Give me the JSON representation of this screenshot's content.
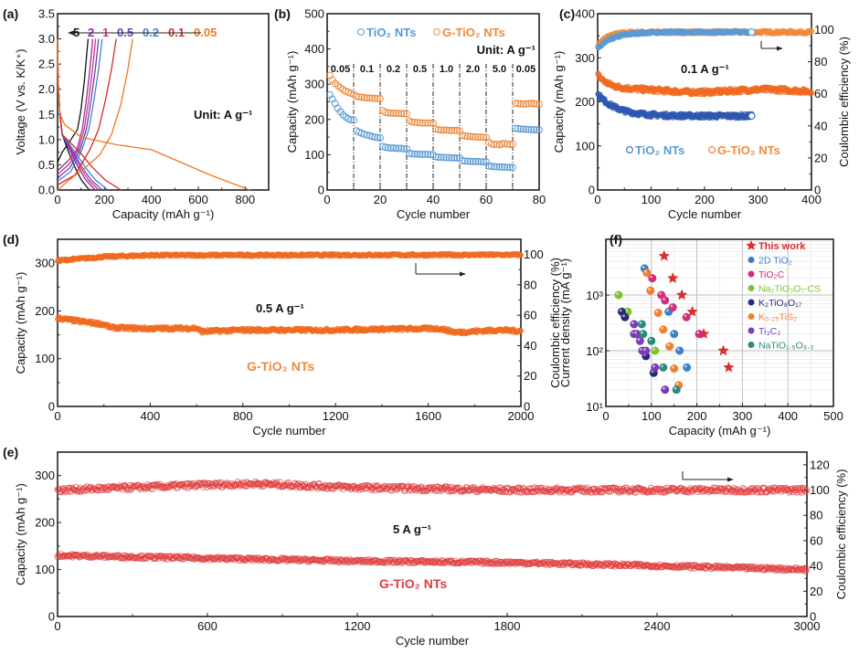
{
  "colors": {
    "orange": "#f08a3c",
    "orange_dark": "#f06a20",
    "blue": "#5b9bd5",
    "blue_dark": "#2f58b0",
    "red": "#e03c3c",
    "black": "#111111"
  },
  "chart_data": [
    {
      "id": "a",
      "panel_label": "(a)",
      "type": "line",
      "title": "",
      "xlabel": "Capacity (mAh g⁻¹)",
      "ylabel": "Voltage (V vs. K/K⁺)",
      "xlim": [
        0,
        900
      ],
      "ylim": [
        0,
        3.5
      ],
      "xticks": [
        0,
        200,
        400,
        600,
        800
      ],
      "yticks": [
        0.0,
        0.5,
        1.0,
        1.5,
        2.0,
        2.5,
        3.0,
        3.5
      ],
      "annotation": "Unit: A g⁻¹",
      "rate_labels": [
        "5",
        "2",
        "1",
        "0.5",
        "0.2",
        "0.1",
        "0.05"
      ],
      "rate_colors": [
        "#111111",
        "#8e2ca8",
        "#d6307a",
        "#6a3fb5",
        "#4a7fd0",
        "#d42a2a",
        "#f07820"
      ],
      "series": [
        {
          "name": "5",
          "discharge_capacity": 135,
          "charge_capacity": 130,
          "color": "#111111"
        },
        {
          "name": "2",
          "discharge_capacity": 160,
          "charge_capacity": 150,
          "color": "#8e2ca8"
        },
        {
          "name": "1",
          "discharge_capacity": 175,
          "charge_capacity": 162,
          "color": "#d6307a"
        },
        {
          "name": "0.5",
          "discharge_capacity": 190,
          "charge_capacity": 175,
          "color": "#6a3fb5"
        },
        {
          "name": "0.2",
          "discharge_capacity": 215,
          "charge_capacity": 190,
          "color": "#4a7fd0"
        },
        {
          "name": "0.1",
          "discharge_capacity": 270,
          "charge_capacity": 250,
          "color": "#d42a2a"
        },
        {
          "name": "0.05",
          "discharge_capacity": 820,
          "charge_capacity": 320,
          "color": "#f07820"
        }
      ]
    },
    {
      "id": "b",
      "panel_label": "(b)",
      "type": "scatter",
      "xlabel": "Cycle number",
      "ylabel": "Capacity (mAh g⁻¹)",
      "xlim": [
        0,
        80
      ],
      "ylim": [
        0,
        500
      ],
      "xticks": [
        0,
        20,
        40,
        60,
        80
      ],
      "yticks": [
        0,
        100,
        200,
        300,
        400,
        500
      ],
      "annotation": "Unit: A g⁻¹",
      "rate_segments": [
        "0.05",
        "0.1",
        "0.2",
        "0.5",
        "1.0",
        "2.0",
        "5.0",
        "0.05"
      ],
      "rate_boundaries": [
        10,
        20,
        30,
        40,
        50,
        60,
        70
      ],
      "series": [
        {
          "name": "TiO₂ NTs",
          "color": "#5b9bd5",
          "segment_values": [
            [
              270,
              258,
              245,
              232,
              222,
              213,
              207,
              202,
              199,
              198
            ],
            [
              168,
              164,
              161,
              158,
              156,
              154,
              152,
              150,
              149,
              148
            ],
            [
              124,
              121,
              120,
              119,
              119,
              118,
              118,
              118,
              117,
              117
            ],
            [
              104,
              103,
              102,
              102,
              101,
              101,
              101,
              101,
              100,
              100
            ],
            [
              94,
              93,
              93,
              92,
              92,
              92,
              91,
              91,
              91,
              91
            ],
            [
              83,
              82,
              82,
              81,
              81,
              81,
              81,
              80,
              80,
              80
            ],
            [
              68,
              67,
              66,
              66,
              65,
              65,
              65,
              64,
              64,
              64
            ],
            [
              175,
              174,
              173,
              173,
              172,
              172,
              171,
              171,
              171,
              170
            ]
          ]
        },
        {
          "name": "G-TiO₂ NTs",
          "color": "#f08a3c",
          "segment_values": [
            [
              325,
              312,
              302,
              296,
              290,
              285,
              280,
              277,
              274,
              272
            ],
            [
              266,
              264,
              263,
              262,
              261,
              261,
              260,
              260,
              259,
              259
            ],
            [
              225,
              220,
              219,
              218,
              218,
              218,
              217,
              217,
              217,
              216
            ],
            [
              196,
              193,
              192,
              191,
              191,
              190,
              190,
              190,
              190,
              189
            ],
            [
              173,
              171,
              170,
              170,
              170,
              169,
              169,
              169,
              169,
              168
            ],
            [
              155,
              153,
              152,
              152,
              151,
              151,
              150,
              150,
              150,
              149
            ],
            [
              135,
              131,
              129,
              130,
              128,
              131,
              132,
              130,
              129,
              130
            ],
            [
              246,
              245,
              245,
              244,
              244,
              245,
              246,
              245,
              244,
              243
            ]
          ]
        }
      ]
    },
    {
      "id": "c",
      "panel_label": "(c)",
      "type": "scatter",
      "xlabel": "Cycle number",
      "ylabel": "Capacity (mAh g⁻¹)",
      "y2label": "Coulombic efficiency (%)",
      "xlim": [
        0,
        400
      ],
      "ylim": [
        0,
        400
      ],
      "y2lim": [
        0,
        110
      ],
      "xticks": [
        0,
        100,
        200,
        300,
        400
      ],
      "yticks": [
        0,
        100,
        200,
        300,
        400
      ],
      "y2ticks": [
        0,
        20,
        40,
        60,
        80,
        100
      ],
      "annotation": "0.1 A g⁻¹",
      "series": [
        {
          "name": "TiO₂ NTs capacity",
          "color": "#2f58b0",
          "end_cycle": 288,
          "start": 218,
          "plateau": 168
        },
        {
          "name": "G-TiO₂ NTs capacity",
          "color": "#f06a20",
          "end_cycle": 400,
          "start": 262,
          "plateau": 225
        },
        {
          "name": "TiO₂ NTs CE",
          "color": "#5b9bd5",
          "end_cycle": 288,
          "start": 88,
          "plateau": 98.5,
          "axis": "y2"
        },
        {
          "name": "G-TiO₂ NTs CE",
          "color": "#f08a3c",
          "end_cycle": 400,
          "start": 90,
          "plateau": 98.5,
          "axis": "y2"
        }
      ],
      "legend": [
        "TiO₂ NTs",
        "G-TiO₂ NTs"
      ]
    },
    {
      "id": "d",
      "panel_label": "(d)",
      "type": "scatter",
      "xlabel": "Cycle number",
      "ylabel": "Capacity (mAh g⁻¹)",
      "y2label": "Coulombic efficiency (%)",
      "xlim": [
        0,
        2000
      ],
      "ylim": [
        0,
        350
      ],
      "y2lim": [
        0,
        110
      ],
      "xticks": [
        0,
        400,
        800,
        1200,
        1600,
        2000
      ],
      "yticks": [
        0,
        100,
        200,
        300
      ],
      "y2ticks": [
        0,
        20,
        40,
        60,
        80,
        100
      ],
      "annotation": "0.5 A g⁻¹",
      "series_label": "G-TiO₂ NTs",
      "series": [
        {
          "name": "capacity",
          "color": "#f06a20",
          "points": [
            [
              0,
              185
            ],
            [
              100,
              178
            ],
            [
              200,
              172
            ],
            [
              230,
              165
            ],
            [
              400,
              163
            ],
            [
              600,
              164
            ],
            [
              620,
              157
            ],
            [
              800,
              160
            ],
            [
              1000,
              160
            ],
            [
              1200,
              160
            ],
            [
              1400,
              162
            ],
            [
              1650,
              163
            ],
            [
              1720,
              155
            ],
            [
              1900,
              160
            ],
            [
              2000,
              158
            ]
          ]
        },
        {
          "name": "CE",
          "color": "#f06a20",
          "axis": "y2",
          "points": [
            [
              0,
              96
            ],
            [
              200,
              98.5
            ],
            [
              400,
              99.5
            ],
            [
              2000,
              99.8
            ]
          ]
        }
      ]
    },
    {
      "id": "f",
      "panel_label": "(f)",
      "type": "scatter",
      "xlabel": "Capacity (mAh g⁻¹)",
      "ylabel": "Current density (mA g⁻¹)",
      "xlim": [
        0,
        500
      ],
      "ylim_log": [
        10,
        10000
      ],
      "yscale": "log",
      "xticks": [
        0,
        100,
        200,
        300,
        400,
        500
      ],
      "yticks": [
        "10¹",
        "10²",
        "10³"
      ],
      "legend_position": "top-right",
      "series": [
        {
          "name": "This work",
          "marker": "star",
          "color": "#d63030",
          "points": [
            [
              128,
              5000
            ],
            [
              147,
              2000
            ],
            [
              167,
              1000
            ],
            [
              190,
              500
            ],
            [
              215,
              200
            ],
            [
              258,
              100
            ],
            [
              270,
              50
            ]
          ]
        },
        {
          "name": "2D TiO₂",
          "marker": "ball",
          "color": "#3a80c8",
          "points": [
            [
              85,
              3000
            ],
            [
              138,
              500
            ],
            [
              150,
              200
            ],
            [
              162,
              100
            ],
            [
              178,
              50
            ]
          ]
        },
        {
          "name": "TiO₂C",
          "marker": "ball",
          "color": "#d42b7a",
          "points": [
            [
              102,
              2000
            ],
            [
              122,
              1000
            ],
            [
              130,
              800
            ],
            [
              147,
              600
            ],
            [
              177,
              400
            ],
            [
              205,
              200
            ]
          ]
        },
        {
          "name": "Na₂TiO₃O₇-CS",
          "marker": "ball",
          "color": "#7cc42a",
          "points": [
            [
              28,
              1000
            ],
            [
              48,
              500
            ],
            [
              108,
              100
            ]
          ]
        },
        {
          "name": "K₂TiO₈O₁₇",
          "marker": "ball",
          "color": "#2a2a7a",
          "points": [
            [
              35,
              500
            ],
            [
              42,
              400
            ],
            [
              88,
              80
            ],
            [
              105,
              40
            ]
          ]
        },
        {
          "name": "K₀.₂₅TiS₂",
          "marker": "ball",
          "color": "#f08030",
          "points": [
            [
              90,
              2500
            ],
            [
              98,
              1200
            ],
            [
              115,
              480
            ],
            [
              126,
              240
            ],
            [
              140,
              120
            ],
            [
              150,
              48
            ],
            [
              160,
              24
            ]
          ]
        },
        {
          "name": "Ti₃C₂",
          "marker": "ball",
          "color": "#7a3cb8",
          "points": [
            [
              62,
              300
            ],
            [
              62,
              200
            ],
            [
              68,
              200
            ],
            [
              75,
              150
            ],
            [
              80,
              100
            ],
            [
              88,
              100
            ],
            [
              108,
              50
            ],
            [
              130,
              20
            ]
          ]
        },
        {
          "name": "NaTiO₁.₅O₈.₃",
          "marker": "ball",
          "color": "#2a8a80",
          "points": [
            [
              79,
              300
            ],
            [
              82,
              200
            ],
            [
              100,
              150
            ],
            [
              126,
              50
            ],
            [
              155,
              20
            ]
          ]
        }
      ]
    },
    {
      "id": "e",
      "panel_label": "(e)",
      "type": "scatter",
      "xlabel": "Cycle number",
      "ylabel": "Capacity (mAh g⁻¹)",
      "y2label": "Coulombic efficiency (%)",
      "xlim": [
        0,
        3000
      ],
      "ylim": [
        0,
        350
      ],
      "y2lim": [
        0,
        130
      ],
      "xticks": [
        0,
        600,
        1200,
        1800,
        2400,
        3000
      ],
      "yticks": [
        0,
        100,
        200,
        300
      ],
      "y2ticks": [
        0,
        20,
        40,
        60,
        80,
        100,
        120
      ],
      "annotation": "5 A g⁻¹",
      "series_label": "G-TiO₂ NTs",
      "series": [
        {
          "name": "capacity",
          "color": "#e03c3c",
          "points": [
            [
              0,
              130
            ],
            [
              600,
              124
            ],
            [
              1200,
              118
            ],
            [
              1800,
              115
            ],
            [
              2400,
              108
            ],
            [
              3000,
              100
            ]
          ]
        },
        {
          "name": "CE",
          "color": "#e03c3c",
          "axis": "y2",
          "points": [
            [
              0,
              100
            ],
            [
              600,
              104
            ],
            [
              800,
              105
            ],
            [
              1200,
              102
            ],
            [
              1800,
              100
            ],
            [
              3000,
              100
            ]
          ]
        }
      ]
    }
  ]
}
